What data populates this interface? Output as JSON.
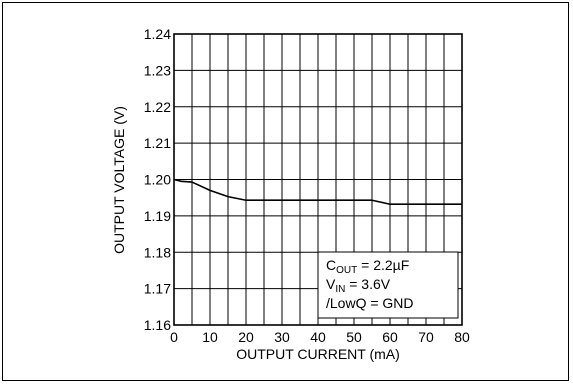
{
  "chart_data": {
    "type": "line",
    "xlabel": "OUTPUT CURRENT (mA)",
    "ylabel": "OUTPUT VOLTAGE (V)",
    "xlim": [
      0,
      80
    ],
    "ylim": [
      1.16,
      1.24
    ],
    "x_ticks": [
      "0",
      "10",
      "20",
      "30",
      "40",
      "50",
      "60",
      "70",
      "80"
    ],
    "y_ticks": [
      "1.16",
      "1.17",
      "1.18",
      "1.19",
      "1.20",
      "1.21",
      "1.22",
      "1.23",
      "1.24"
    ],
    "grid": true,
    "series": [
      {
        "color": "#000000",
        "x": [
          0,
          2,
          5,
          10,
          15,
          20,
          30,
          40,
          50,
          55,
          60,
          70,
          80
        ],
        "y": [
          1.2,
          1.1995,
          1.1993,
          1.197,
          1.1953,
          1.1943,
          1.1943,
          1.1943,
          1.1943,
          1.1943,
          1.1932,
          1.1932,
          1.1932
        ]
      }
    ],
    "legend": {
      "position": "bottom-right",
      "line1_main": "C",
      "line1_sub": "OUT",
      "line1_rest": " = 2.2µF",
      "line2_main": "V",
      "line2_sub": "IN",
      "line2_rest": " = 3.6V",
      "line3": "/LowQ = GND"
    }
  }
}
